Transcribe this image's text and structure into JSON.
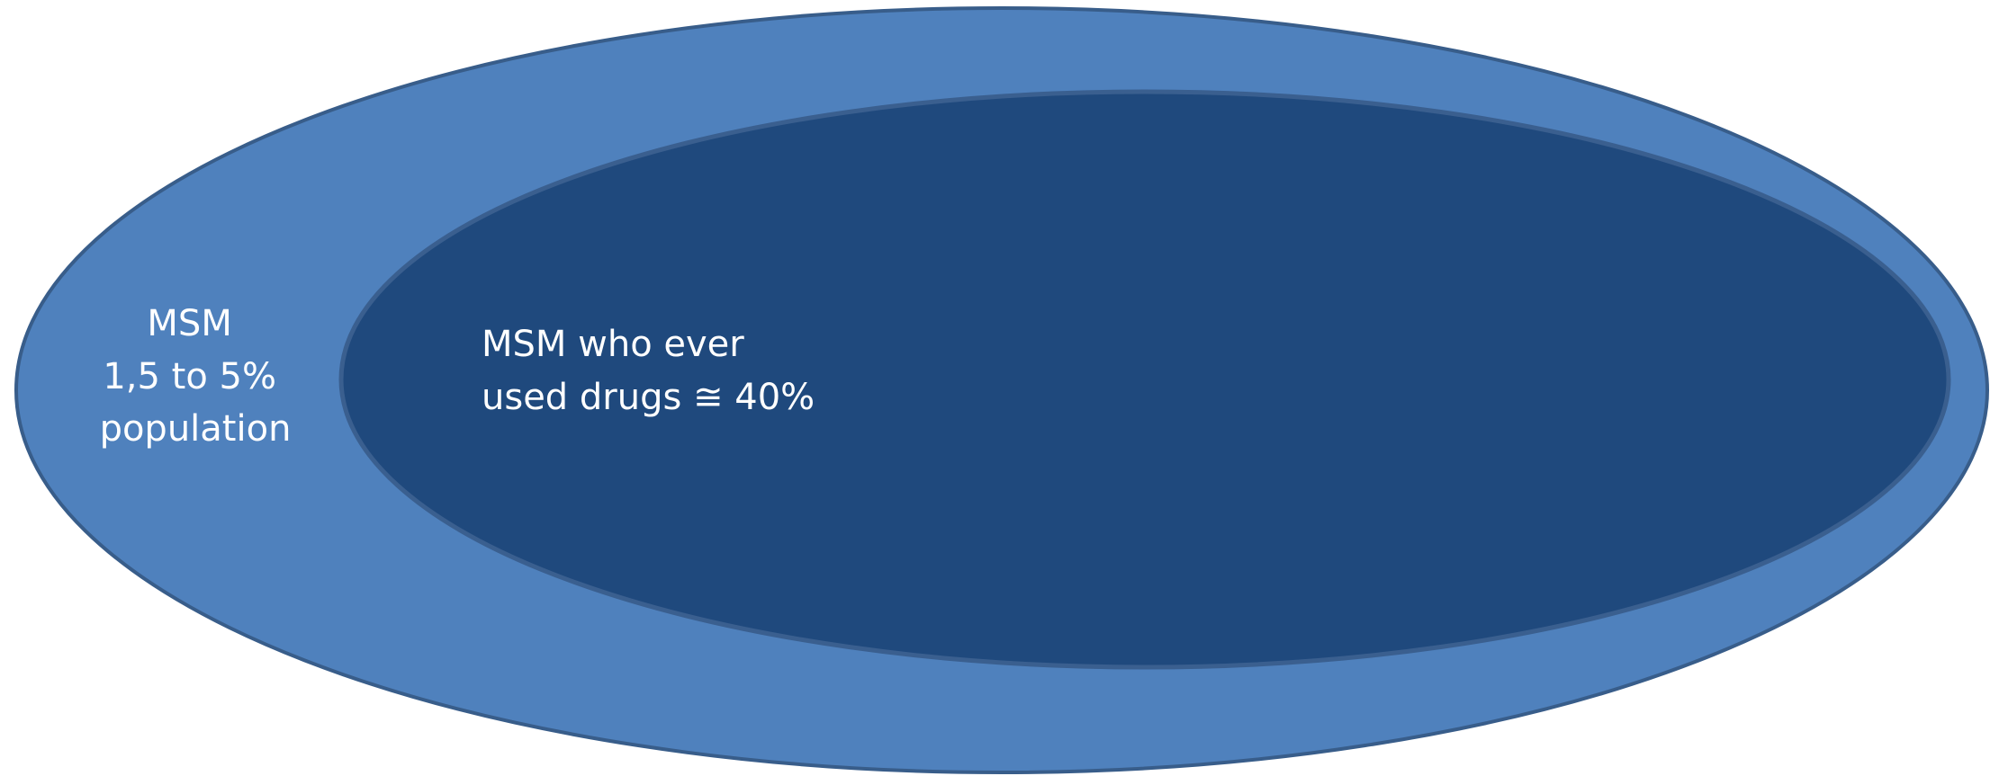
{
  "diagram": {
    "outer": {
      "label_lines": [
        "MSM",
        "1,5 to 5%",
        "population"
      ],
      "fill": "#4f81bd",
      "stroke": "#385d8a"
    },
    "inner": {
      "label_lines": [
        "MSM who ever",
        "used drugs ≅ 40%"
      ],
      "fill": "#1f497d",
      "stroke": "#3a5f8f"
    }
  }
}
